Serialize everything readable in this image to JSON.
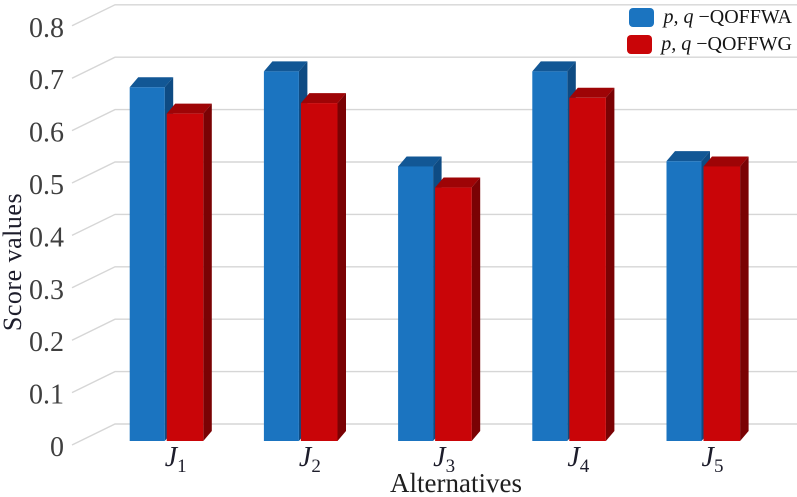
{
  "figure": {
    "background": "#ffffff"
  },
  "chart_data": {
    "type": "bar",
    "projection": "3d",
    "title": "",
    "xlabel": "Alternatives",
    "ylabel": "Score values",
    "categories": [
      {
        "base": "J",
        "sub": "1"
      },
      {
        "base": "J",
        "sub": "2"
      },
      {
        "base": "J",
        "sub": "3"
      },
      {
        "base": "J",
        "sub": "4"
      },
      {
        "base": "J",
        "sub": "5"
      }
    ],
    "series": [
      {
        "name_math": "p, q",
        "name_text": "−QOFFWA",
        "values": [
          0.67,
          0.7,
          0.52,
          0.7,
          0.53
        ],
        "color": "#1B74C0",
        "color_top": "#125795",
        "color_side": "#0E4B83"
      },
      {
        "name_math": "p, q",
        "name_text": "−QOFFWG",
        "values": [
          0.62,
          0.64,
          0.48,
          0.65,
          0.52
        ],
        "color": "#C90508",
        "color_top": "#9E0406",
        "color_side": "#7A0204"
      }
    ],
    "ylim": [
      0,
      0.8
    ],
    "ytick_labels": [
      "0",
      "0.1",
      "0.2",
      "0.3",
      "0.4",
      "0.5",
      "0.6",
      "0.7",
      "0.8"
    ],
    "grid": true,
    "gridline_color": "#D6D6D6",
    "tick_text_color": "#3F3F3F",
    "legend_position": "top-right"
  }
}
